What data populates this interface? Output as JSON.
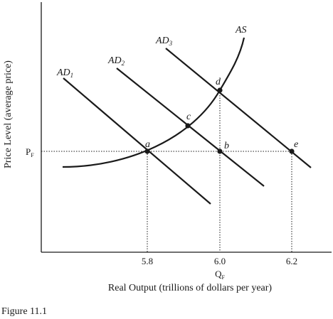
{
  "chart_data": {
    "type": "line",
    "xlabel": "Real Output (trillions of dollars per year)",
    "ylabel": "Price Level (average price)",
    "x_ticks": [
      "5.8",
      "6.0",
      "6.2"
    ],
    "x_full_employment_label": "Q",
    "x_full_employment_sub": "F",
    "y_full_employment_label": "P",
    "y_full_employment_sub": "F",
    "curves": [
      {
        "name": "AS",
        "label": "AS",
        "sub": ""
      },
      {
        "name": "AD1",
        "label": "AD",
        "sub": "1"
      },
      {
        "name": "AD2",
        "label": "AD",
        "sub": "2"
      },
      {
        "name": "AD3",
        "label": "AD",
        "sub": "3"
      }
    ],
    "points": [
      {
        "label": "a",
        "x": 5.8,
        "curves": [
          "AD1",
          "AS"
        ]
      },
      {
        "label": "b",
        "x": 6.0,
        "curves": [
          "AD2"
        ]
      },
      {
        "label": "c",
        "curves": [
          "AD2",
          "AS"
        ]
      },
      {
        "label": "d",
        "x": 6.0,
        "curves": [
          "AD3",
          "AS"
        ]
      },
      {
        "label": "e",
        "x": 6.2,
        "curves": [
          "AD3"
        ]
      }
    ],
    "grid": false
  },
  "caption": "Figure 11.1"
}
